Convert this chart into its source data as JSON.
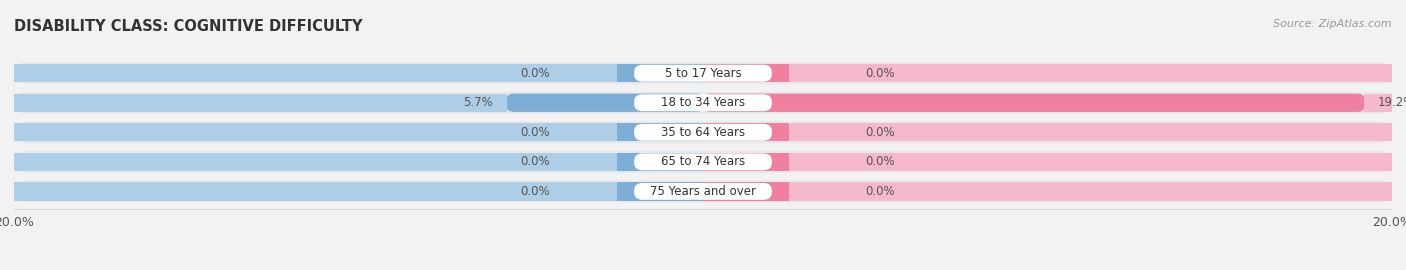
{
  "title": "DISABILITY CLASS: COGNITIVE DIFFICULTY",
  "source": "Source: ZipAtlas.com",
  "categories": [
    "5 to 17 Years",
    "18 to 34 Years",
    "35 to 64 Years",
    "65 to 74 Years",
    "75 Years and over"
  ],
  "male_values": [
    0.0,
    5.7,
    0.0,
    0.0,
    0.0
  ],
  "female_values": [
    0.0,
    19.2,
    0.0,
    0.0,
    0.0
  ],
  "male_color": "#7dafd6",
  "female_color": "#f07fa0",
  "male_color_light": "#aecde6",
  "female_color_light": "#f5b8cc",
  "axis_limit": 20.0,
  "stub_size": 2.5,
  "bar_height": 0.62,
  "background_color": "#f2f2f2",
  "row_bg_color": "#e8e8ec",
  "title_fontsize": 10.5,
  "label_fontsize": 8.5,
  "value_fontsize": 8.5,
  "tick_fontsize": 9,
  "source_fontsize": 8,
  "legend_fontsize": 9
}
